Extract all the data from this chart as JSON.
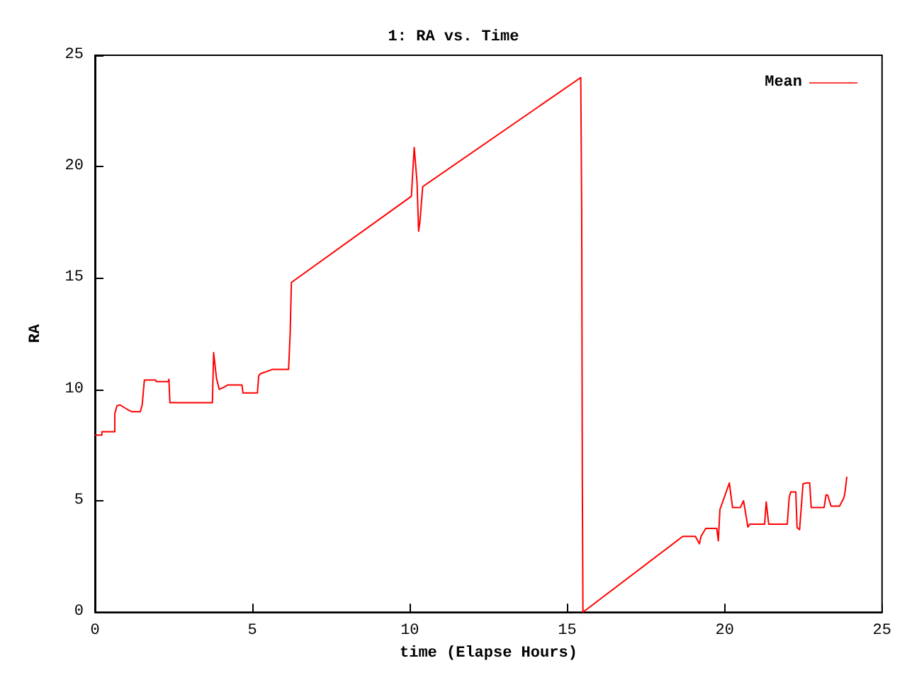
{
  "chart_data": {
    "type": "line",
    "title": "1: RA vs. Time",
    "xlabel": "time (Elapse Hours)",
    "ylabel": "RA",
    "xlim": [
      0,
      25
    ],
    "xticks": [
      0,
      5,
      10,
      15,
      20,
      25
    ],
    "ylim": [
      0,
      25
    ],
    "yticks": [
      0,
      5,
      10,
      15,
      20,
      25
    ],
    "grid": false,
    "legend": "top right",
    "marker": "none",
    "line_style": "solid",
    "series": [
      {
        "name": "Mean",
        "color": "#ff0000",
        "x": [
          0,
          0.22,
          0.22,
          0.63,
          0.63,
          0.7,
          0.8,
          1.03,
          1.17,
          1.44,
          1.5,
          1.57,
          1.93,
          1.95,
          2.33,
          2.35,
          2.38,
          3.73,
          3.77,
          3.86,
          3.95,
          4.1,
          4.22,
          4.67,
          4.7,
          5.16,
          5.2,
          5.25,
          5.65,
          6.15,
          6.2,
          6.24,
          10.05,
          10.14,
          10.23,
          10.28,
          10.32,
          10.41,
          15.43,
          15.46,
          15.48,
          15.5,
          18.67,
          19.07,
          19.2,
          19.25,
          19.4,
          19.75,
          19.8,
          19.85,
          20.15,
          20.25,
          20.5,
          20.6,
          20.74,
          20.8,
          21.27,
          21.32,
          21.4,
          21.99,
          22.05,
          22.1,
          22.26,
          22.3,
          22.38,
          22.49,
          22.6,
          22.7,
          22.75,
          23.16,
          23.22,
          23.27,
          23.38,
          23.65,
          23.79,
          23.83,
          23.88
        ],
        "values": [
          7.95,
          7.95,
          8.1,
          8.1,
          8.9,
          9.27,
          9.3,
          9.1,
          9.0,
          9.0,
          9.3,
          10.42,
          10.42,
          10.35,
          10.35,
          10.45,
          9.4,
          9.4,
          11.65,
          10.5,
          10.0,
          10.1,
          10.2,
          10.2,
          9.84,
          9.84,
          10.6,
          10.7,
          10.9,
          10.9,
          12.5,
          14.8,
          18.67,
          20.86,
          19.3,
          17.1,
          17.5,
          19.1,
          24.0,
          18.0,
          6.0,
          0,
          3.4,
          3.4,
          3.07,
          3.4,
          3.76,
          3.76,
          3.2,
          4.6,
          5.8,
          4.7,
          4.7,
          5.0,
          3.82,
          3.95,
          3.95,
          4.95,
          3.95,
          3.95,
          5.14,
          5.4,
          5.4,
          3.8,
          3.7,
          5.76,
          5.8,
          5.8,
          4.7,
          4.7,
          5.26,
          5.26,
          4.76,
          4.76,
          5.14,
          5.45,
          6.08
        ]
      }
    ]
  }
}
